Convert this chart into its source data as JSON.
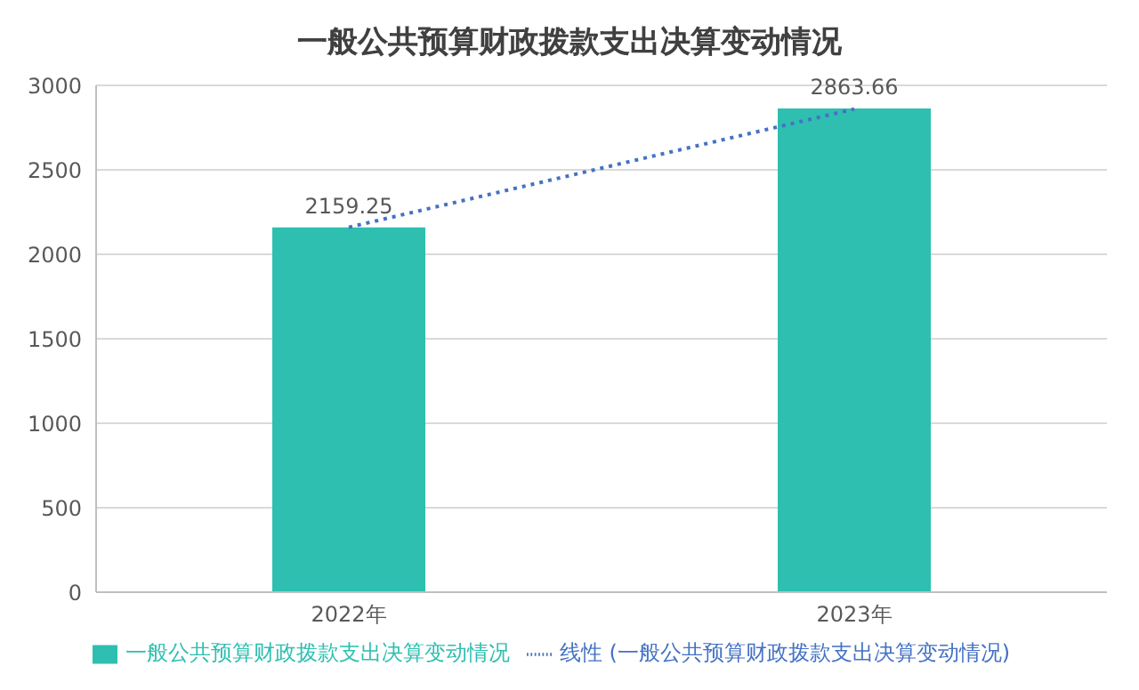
{
  "chart_data": {
    "type": "bar",
    "title": "一般公共预算财政拨款支出决算变动情况",
    "categories": [
      "2022年",
      "2023年"
    ],
    "series": [
      {
        "name": "一般公共预算财政拨款支出决算变动情况",
        "color": "#2ebfb0",
        "values": [
          2159.25,
          2863.66
        ],
        "value_labels": [
          "2159.25",
          "2863.66"
        ]
      },
      {
        "name": "线性 (一般公共预算财政拨款支出决算变动情况)",
        "type": "line",
        "color": "#4472c4",
        "line_style": "dotted",
        "marker": "none",
        "values": [
          2160,
          2860
        ]
      }
    ],
    "ylim": [
      0,
      3000
    ],
    "yticks": [
      0,
      500,
      1000,
      1500,
      2000,
      2500,
      3000
    ],
    "grid": "y",
    "legend": "bottom"
  }
}
